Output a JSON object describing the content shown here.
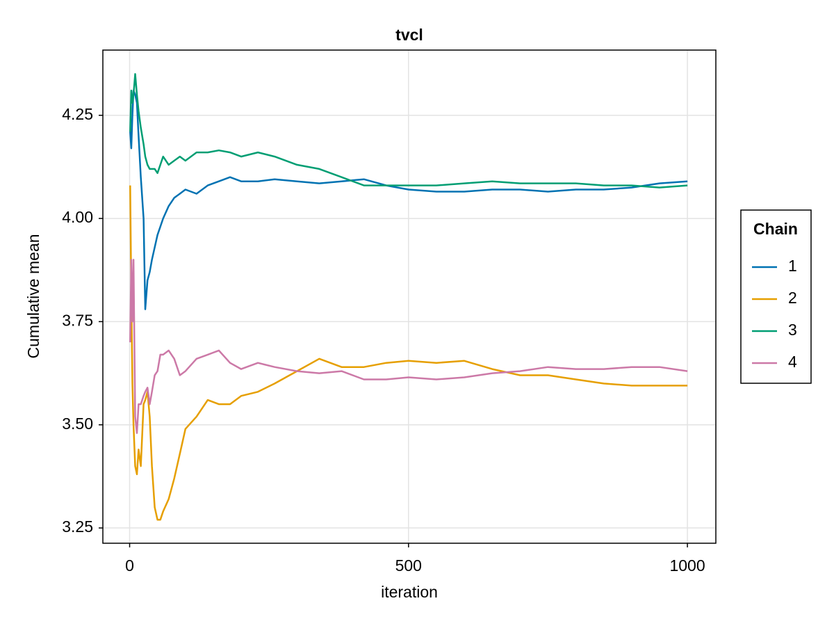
{
  "chart_data": {
    "type": "line",
    "title": "tvcl",
    "x_label": "iteration",
    "y_label": "Cumulative mean",
    "legend_title": "Chain",
    "legend": "right",
    "grid": true,
    "xlim": [
      -48,
      1051
    ],
    "xticks": [
      0,
      500,
      1000
    ],
    "ylim": [
      3.213,
      4.408
    ],
    "yticks": [
      3.25,
      {
        "value": 3.5,
        "label": "3.50"
      },
      3.75,
      {
        "value": 4,
        "label": "4.00"
      },
      4.25
    ],
    "x": [
      1,
      3,
      5,
      7,
      10,
      13,
      16,
      20,
      25,
      28,
      32,
      36,
      40,
      45,
      50,
      55,
      60,
      70,
      80,
      90,
      100,
      120,
      140,
      160,
      180,
      200,
      230,
      260,
      300,
      340,
      380,
      420,
      460,
      500,
      550,
      600,
      650,
      700,
      750,
      800,
      850,
      900,
      950,
      1000
    ],
    "series": [
      {
        "name": "1",
        "color": "#0072b2",
        "values": [
          4.21,
          4.17,
          4.25,
          4.31,
          4.3,
          4.28,
          4.2,
          4.1,
          4.0,
          3.78,
          3.85,
          3.87,
          3.9,
          3.93,
          3.96,
          3.98,
          4.0,
          4.03,
          4.05,
          4.06,
          4.07,
          4.06,
          4.08,
          4.09,
          4.1,
          4.09,
          4.09,
          4.095,
          4.09,
          4.085,
          4.09,
          4.095,
          4.08,
          4.07,
          4.065,
          4.065,
          4.07,
          4.07,
          4.065,
          4.07,
          4.07,
          4.075,
          4.085,
          4.09
        ]
      },
      {
        "name": "2",
        "color": "#e69f00",
        "values": [
          4.08,
          3.82,
          3.6,
          3.5,
          3.4,
          3.38,
          3.44,
          3.4,
          3.55,
          3.56,
          3.58,
          3.52,
          3.4,
          3.3,
          3.27,
          3.27,
          3.29,
          3.32,
          3.37,
          3.43,
          3.49,
          3.52,
          3.56,
          3.55,
          3.55,
          3.57,
          3.58,
          3.6,
          3.63,
          3.66,
          3.64,
          3.64,
          3.65,
          3.655,
          3.65,
          3.655,
          3.635,
          3.62,
          3.62,
          3.61,
          3.6,
          3.595,
          3.595,
          3.595
        ]
      },
      {
        "name": "3",
        "color": "#009e73",
        "values": [
          4.21,
          4.31,
          4.28,
          4.3,
          4.35,
          4.3,
          4.26,
          4.22,
          4.18,
          4.15,
          4.13,
          4.12,
          4.12,
          4.12,
          4.11,
          4.13,
          4.15,
          4.13,
          4.14,
          4.15,
          4.14,
          4.16,
          4.16,
          4.165,
          4.16,
          4.15,
          4.16,
          4.15,
          4.13,
          4.12,
          4.1,
          4.08,
          4.08,
          4.08,
          4.08,
          4.085,
          4.09,
          4.085,
          4.085,
          4.085,
          4.08,
          4.08,
          4.075,
          4.08
        ]
      },
      {
        "name": "4",
        "color": "#cc79a7",
        "values": [
          3.7,
          3.9,
          3.75,
          3.9,
          3.52,
          3.48,
          3.55,
          3.55,
          3.57,
          3.58,
          3.59,
          3.55,
          3.58,
          3.62,
          3.63,
          3.67,
          3.67,
          3.68,
          3.66,
          3.62,
          3.63,
          3.66,
          3.67,
          3.68,
          3.65,
          3.635,
          3.65,
          3.64,
          3.63,
          3.625,
          3.63,
          3.61,
          3.61,
          3.615,
          3.61,
          3.615,
          3.625,
          3.63,
          3.64,
          3.635,
          3.635,
          3.64,
          3.64,
          3.63
        ]
      }
    ]
  }
}
